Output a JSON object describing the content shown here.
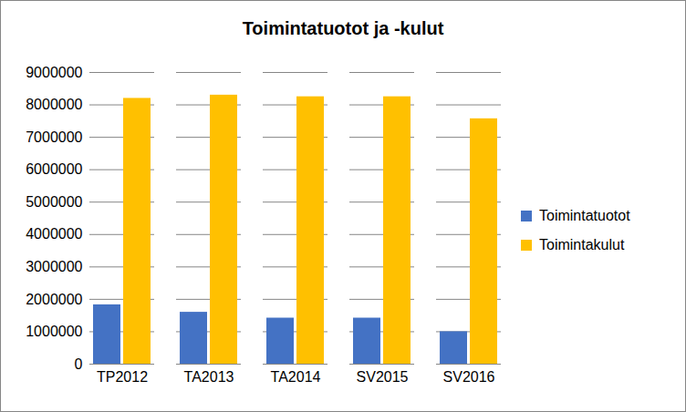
{
  "chart_data": {
    "type": "bar",
    "title": "Toimintatuotot ja -kulut",
    "categories": [
      "TP2012",
      "TA2013",
      "TA2014",
      "SV2015",
      "SV2016"
    ],
    "series": [
      {
        "name": "Toimintatuotot",
        "color": "#4472c4",
        "values": [
          1830000,
          1600000,
          1420000,
          1420000,
          1000000
        ]
      },
      {
        "name": "Toimintakulut",
        "color": "#ffc000",
        "values": [
          8200000,
          8300000,
          8250000,
          8250000,
          7570000
        ]
      }
    ],
    "ylim": [
      0,
      9000000
    ],
    "yticks": [
      0,
      1000000,
      2000000,
      3000000,
      4000000,
      5000000,
      6000000,
      7000000,
      8000000,
      9000000
    ],
    "grid": true,
    "legend": "right"
  }
}
